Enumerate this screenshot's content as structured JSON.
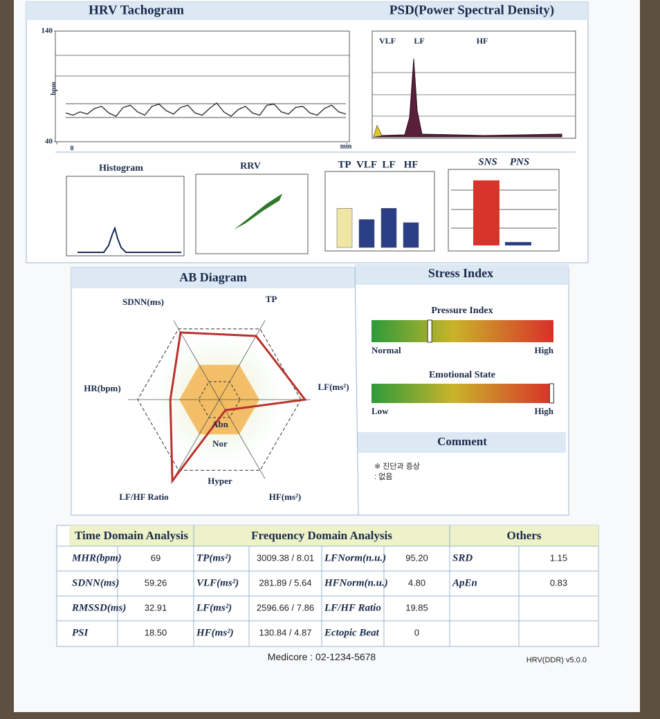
{
  "header": {
    "tachogram_title": "HRV Tachogram",
    "psd_title": "PSD(Power Spectral Density)"
  },
  "tachogram": {
    "y_label": "bpm",
    "x_label": "min",
    "ylim": [
      40,
      140
    ],
    "yticks": [
      40,
      140
    ],
    "xticks": [
      0
    ],
    "values": [
      66,
      64,
      67,
      65,
      70,
      72,
      66,
      63,
      71,
      73,
      67,
      64,
      72,
      74,
      68,
      65,
      71,
      73,
      66,
      64,
      70,
      75,
      67,
      63,
      69,
      72,
      66,
      64,
      73,
      74,
      67,
      65,
      71,
      72,
      66,
      64,
      70,
      73,
      67,
      65
    ]
  },
  "psd": {
    "bands": [
      "VLF",
      "LF",
      "HF"
    ]
  },
  "mini_charts": {
    "histogram_title": "Histogram",
    "rrv_title": "RRV",
    "band_labels": [
      "TP",
      "VLF",
      "LF",
      "HF"
    ],
    "band_values": [
      63,
      45,
      63,
      40
    ],
    "band_colors": [
      "#efe6a6",
      "#2b3f86",
      "#2b3f86",
      "#2b3f86"
    ],
    "ans_labels": [
      "SNS",
      "PNS"
    ],
    "ans_values": [
      97,
      5
    ],
    "ans_colors": [
      "#d9342b",
      "#2b3f86"
    ]
  },
  "ab_diagram": {
    "title": "AB Diagram",
    "axes": [
      "LF(ms²)",
      "TP",
      "SDNN(ms)",
      "HR(bpm)",
      "LF/HF Ratio",
      "HF(ms²)"
    ],
    "values": [
      1.05,
      0.9,
      0.95,
      0.6,
      1.15,
      0.15
    ],
    "zones": [
      "Abn",
      "Nor",
      "Hyper"
    ]
  },
  "stress_index": {
    "title": "Stress Index",
    "pressure": {
      "label": "Pressure Index",
      "low": "Normal",
      "high": "High",
      "value": 0.32
    },
    "emotional": {
      "label": "Emotional State",
      "low": "Low",
      "high": "High",
      "value": 0.99
    }
  },
  "comment": {
    "title": "Comment",
    "lines": [
      "※ 진단과 증상",
      ": 없음"
    ]
  },
  "table": {
    "headers": [
      "Time Domain Analysis",
      "Frequency Domain Analysis",
      "Others"
    ],
    "rows": [
      [
        "MHR(bpm)",
        "69",
        "TP(ms²)",
        "3009.38 / 8.01",
        "LFNorm(n.u.)",
        "95.20",
        "SRD",
        "1.15"
      ],
      [
        "SDNN(ms)",
        "59.26",
        "VLF(ms²)",
        "281.89 / 5.64",
        "HFNorm(n.u.)",
        "4.80",
        "ApEn",
        "0.83"
      ],
      [
        "RMSSD(ms)",
        "32.91",
        "LF(ms²)",
        "2596.66 / 7.86",
        "LF/HF Ratio",
        "19.85"
      ],
      [
        "PSI",
        "18.50",
        "HF(ms²)",
        "130.84 / 4.87",
        "Ectopic Beat",
        "0"
      ]
    ]
  },
  "footer": {
    "contact": "Medicore : 02-1234-5678",
    "version": "HRV(DDR) v5.0.0"
  }
}
